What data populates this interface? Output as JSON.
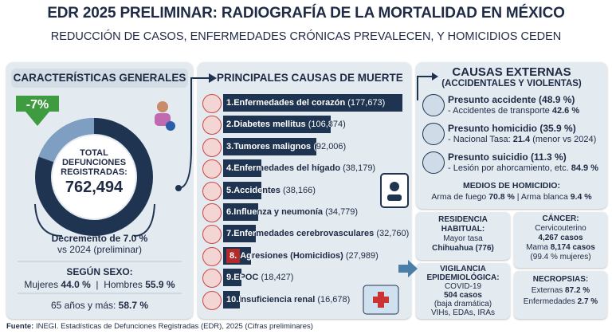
{
  "header": {
    "title": "EDR 2025 PRELIMINAR: RADIOGRAFÍA DE LA MORTALIDAD EN MÉXICO",
    "subtitle": "REDUCCIÓN DE CASOS, ENFERMEDADES CRÓNICAS PREVALECEN, Y HOMICIDIOS CEDEN"
  },
  "general": {
    "title": "CARACTERÍSTICAS GENERALES",
    "badge": "-7%",
    "total_label": [
      "TOTAL",
      "DEFUNCIONES",
      "REGISTRADAS:"
    ],
    "total": "762,494",
    "lines": [
      [
        {
          "t": "Decremento de 7.0 %",
          "b": true
        }
      ],
      [
        {
          "t": "vs 2024 (preliminar)",
          "b": false
        }
      ]
    ],
    "sex_title": "SEGÚN SEXO:",
    "sex": [
      [
        {
          "t": "Mujeres ",
          "b": false
        },
        {
          "t": "44.0 %",
          "b": true
        },
        {
          "t": "  |  Hombres ",
          "b": false
        },
        {
          "t": "55.9 %",
          "b": true
        }
      ]
    ],
    "age": [
      [
        {
          "t": "65 años y más: ",
          "b": false
        },
        {
          "t": "58.7 %",
          "b": true
        }
      ]
    ]
  },
  "causes": {
    "title": "PRINCIPALES CAUSAS DE MUERTE",
    "items": [
      {
        "rank": "1.",
        "name": "Enfermedades del corazón",
        "value": 177673,
        "value_label": "(177,673)"
      },
      {
        "rank": "2.",
        "name": "Diabetes mellitus",
        "value": 106874,
        "value_label": "(106,874)"
      },
      {
        "rank": "3.",
        "name": "Tumores malignos",
        "value": 92006,
        "value_label": "(92,006)"
      },
      {
        "rank": "4.",
        "name": "Enfermedades del hígado",
        "value": 38179,
        "value_label": "(38,179)"
      },
      {
        "rank": "5.",
        "name": "Accidentes",
        "value": 38166,
        "value_label": "(38,166)"
      },
      {
        "rank": "6.",
        "name": "Influenza y neumonía",
        "value": 34779,
        "value_label": "(34,779)"
      },
      {
        "rank": "7.",
        "name": "Enfermedades cerebrovasculares",
        "value": 32760,
        "value_label": "(32,760)"
      },
      {
        "rank": "8.",
        "name": "Agresiones (Homicidios)",
        "value": 27989,
        "value_label": "(27,989)"
      },
      {
        "rank": "9.",
        "name": "EPOC",
        "value": 18427,
        "value_label": "(18,427)"
      },
      {
        "rank": "10.",
        "name": "Insuficiencia renal",
        "value": 16678,
        "value_label": "(16,678)"
      }
    ]
  },
  "external": {
    "title": "CAUSAS EXTERNAS",
    "subtitle": "(ACCIDENTALES Y VIOLENTAS)",
    "items": [
      {
        "lines": [
          [
            {
              "t": "Presunto accidente (48.9 %)",
              "b": true
            }
          ],
          [
            {
              "t": "- Accidentes de transporte ",
              "b": false
            },
            {
              "t": "42.6 %",
              "b": true
            }
          ]
        ]
      },
      {
        "lines": [
          [
            {
              "t": "Presunto homicidio (35.9 %)",
              "b": true
            }
          ],
          [
            {
              "t": "- Nacional Tasa: ",
              "b": false
            },
            {
              "t": "21.4",
              "b": true
            },
            {
              "t": " (menor vs 2024)",
              "b": false
            }
          ]
        ]
      },
      {
        "lines": [
          [
            {
              "t": "Presunto suicidio (11.3 %)",
              "b": true
            }
          ],
          [
            {
              "t": "- Lesión por ahorcamiento, etc. ",
              "b": false
            },
            {
              "t": "84.9 %",
              "b": true
            }
          ]
        ]
      }
    ],
    "means": [
      [
        {
          "t": "MEDIOS DE HOMICIDIO:",
          "b": true
        }
      ],
      [
        {
          "t": "Arma de fuego ",
          "b": false
        },
        {
          "t": "70.8 %",
          "b": true
        },
        {
          "t": " | Arma blanca ",
          "b": false
        },
        {
          "t": "9.4 %",
          "b": true
        }
      ]
    ]
  },
  "residence": {
    "lines": [
      [
        {
          "t": "RESIDENCIA",
          "b": true
        }
      ],
      [
        {
          "t": "HABITUAL:",
          "b": true
        }
      ],
      [
        {
          "t": "Mayor tasa",
          "b": false
        }
      ],
      [
        {
          "t": "Chihuahua (776)",
          "b": true
        }
      ]
    ]
  },
  "cancer": {
    "lines": [
      [
        {
          "t": "CÁNCER:",
          "b": true
        }
      ],
      [
        {
          "t": "Cervicouterino",
          "b": false
        }
      ],
      [
        {
          "t": "4,267 casos",
          "b": true
        }
      ],
      [
        {
          "t": "Mama ",
          "b": false
        },
        {
          "t": "8,174 casos",
          "b": true
        }
      ],
      [
        {
          "t": "(99.4 % mujeres)",
          "b": false
        }
      ]
    ]
  },
  "surveillance": {
    "lines": [
      [
        {
          "t": "VIGILANCIA",
          "b": true
        }
      ],
      [
        {
          "t": "EPIDEMIOLÓGICA:",
          "b": true
        }
      ],
      [
        {
          "t": "COVID-19",
          "b": false
        }
      ],
      [
        {
          "t": "504 casos",
          "b": true
        }
      ],
      [
        {
          "t": "(baja dramática)",
          "b": false
        }
      ],
      [
        {
          "t": "VIHs, EDAs, IRAs",
          "b": false
        }
      ]
    ]
  },
  "necropsy": {
    "lines": [
      [
        {
          "t": "NECROPSIAS:",
          "b": true
        }
      ],
      [
        {
          "t": "Externas ",
          "b": false
        },
        {
          "t": "87.2 %",
          "b": true
        }
      ],
      [
        {
          "t": "Enfermedades ",
          "b": false
        },
        {
          "t": "2.7 %",
          "b": true
        }
      ]
    ]
  },
  "footer": [
    [
      {
        "t": "Fuente:",
        "b": true
      },
      {
        "t": " INEGI. Estadísticas de Defunciones Registradas (EDR), 2025 (Cifras preliminares)",
        "b": false
      }
    ]
  ]
}
